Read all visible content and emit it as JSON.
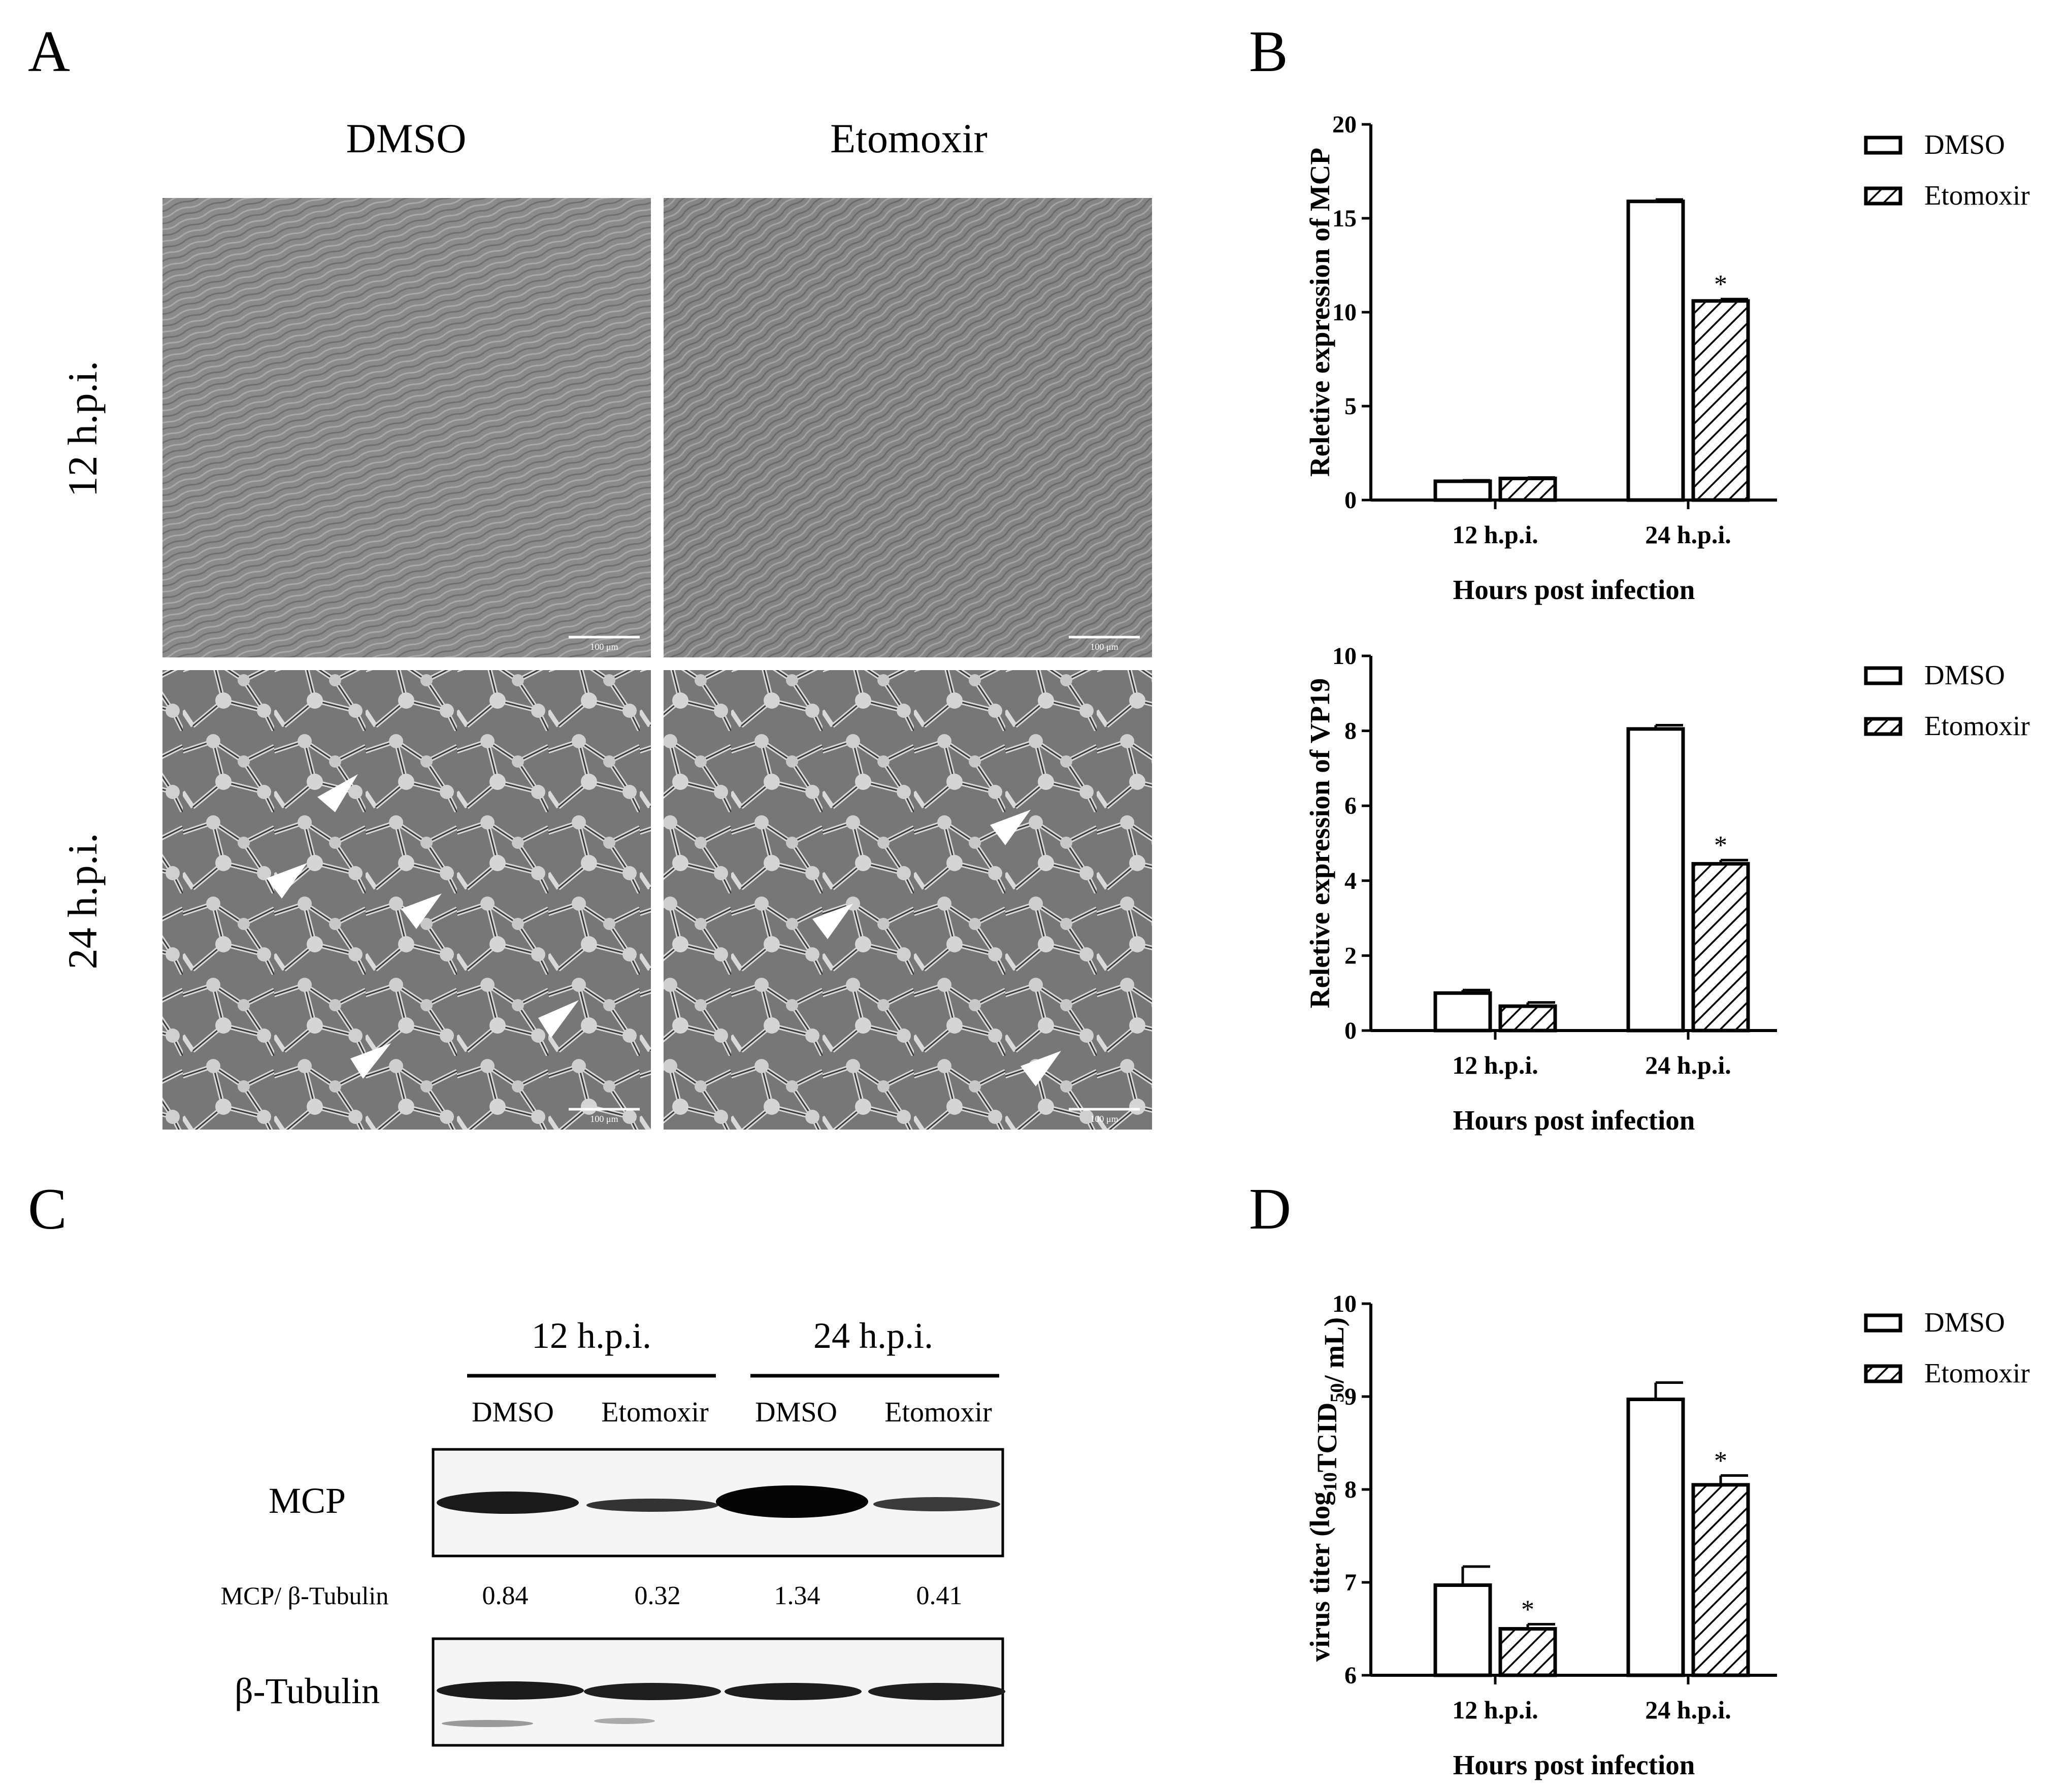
{
  "figure": {
    "panel_letters": [
      "A",
      "B",
      "C",
      "D"
    ],
    "panelA": {
      "columns": [
        "DMSO",
        "Etomoxir"
      ],
      "rows": [
        "12 h.p.i.",
        "24 h.p.i."
      ],
      "scale_bar_labels": [
        "100 μm",
        "100 μm",
        "100 μm",
        "100 μm"
      ]
    },
    "panelC": {
      "time_headers": [
        "12 h.p.i.",
        "24 h.p.i."
      ],
      "lanes": [
        "DMSO",
        "Etomoxir",
        "DMSO",
        "Etomoxir"
      ],
      "protein_top": "MCP",
      "ratio_label": "MCP/ β-Tubulin",
      "ratios": [
        "0.84",
        "0.32",
        "1.34",
        "0.41"
      ],
      "protein_bottom": "β-Tubulin"
    }
  },
  "colors": {
    "ink": "#000000",
    "bar_fill": "#ffffff",
    "hatch": "#000000",
    "micrograph_12h": "#8a8a8a",
    "micrograph_24h": "#6e6e6e"
  },
  "icons": {
    "arrow": "white-arrowhead-icon"
  },
  "chart_data": [
    {
      "id": "B-MCP",
      "type": "bar",
      "categories": [
        "12 h.p.i.",
        "24 h.p.i."
      ],
      "series": [
        {
          "name": "DMSO",
          "values": [
            1.0,
            15.9
          ],
          "errors": [
            0.05,
            0.1
          ],
          "significance": [
            "",
            ""
          ],
          "pattern": "open"
        },
        {
          "name": "Etomoxir",
          "values": [
            1.15,
            10.6
          ],
          "errors": [
            0.05,
            0.1
          ],
          "significance": [
            "",
            "*"
          ],
          "pattern": "hatched"
        }
      ],
      "xlabel": "Hours post infection",
      "ylabel": "Reletive expression of MCP",
      "ylim": [
        0,
        20
      ],
      "yticks": [
        "0",
        "5",
        "10",
        "15",
        "20"
      ],
      "legend": "top-right",
      "grid": false
    },
    {
      "id": "B-VP19",
      "type": "bar",
      "categories": [
        "12 h.p.i.",
        "24 h.p.i."
      ],
      "series": [
        {
          "name": "DMSO",
          "values": [
            1.0,
            8.05
          ],
          "errors": [
            0.08,
            0.1
          ],
          "significance": [
            "",
            ""
          ],
          "pattern": "open"
        },
        {
          "name": "Etomoxir",
          "values": [
            0.65,
            4.45
          ],
          "errors": [
            0.1,
            0.1
          ],
          "significance": [
            "",
            "*"
          ],
          "pattern": "hatched"
        }
      ],
      "xlabel": "Hours post infection",
      "ylabel": "Reletive expression of VP19",
      "ylim": [
        0,
        10
      ],
      "yticks": [
        "0",
        "2",
        "4",
        "6",
        "8",
        "10"
      ],
      "legend": "top-right",
      "grid": false
    },
    {
      "id": "D",
      "type": "bar",
      "categories": [
        "12 h.p.i.",
        "24 h.p.i."
      ],
      "series": [
        {
          "name": "DMSO",
          "values": [
            6.97,
            8.97
          ],
          "errors": [
            0.2,
            0.18
          ],
          "significance": [
            "",
            ""
          ],
          "pattern": "open"
        },
        {
          "name": "Etomoxir",
          "values": [
            6.5,
            8.05
          ],
          "errors": [
            0.05,
            0.1
          ],
          "significance": [
            "*",
            "*"
          ],
          "pattern": "hatched"
        }
      ],
      "xlabel": "Hours post infection",
      "ylabel_main": "virus titer (log",
      "ylabel_sub1": "10",
      "ylabel_mid": "TCID",
      "ylabel_sub2": "50",
      "ylabel_end": "/ mL)",
      "ylim": [
        6,
        10
      ],
      "yticks": [
        "6",
        "7",
        "8",
        "9",
        "10"
      ],
      "legend": "top-right",
      "grid": false
    }
  ]
}
